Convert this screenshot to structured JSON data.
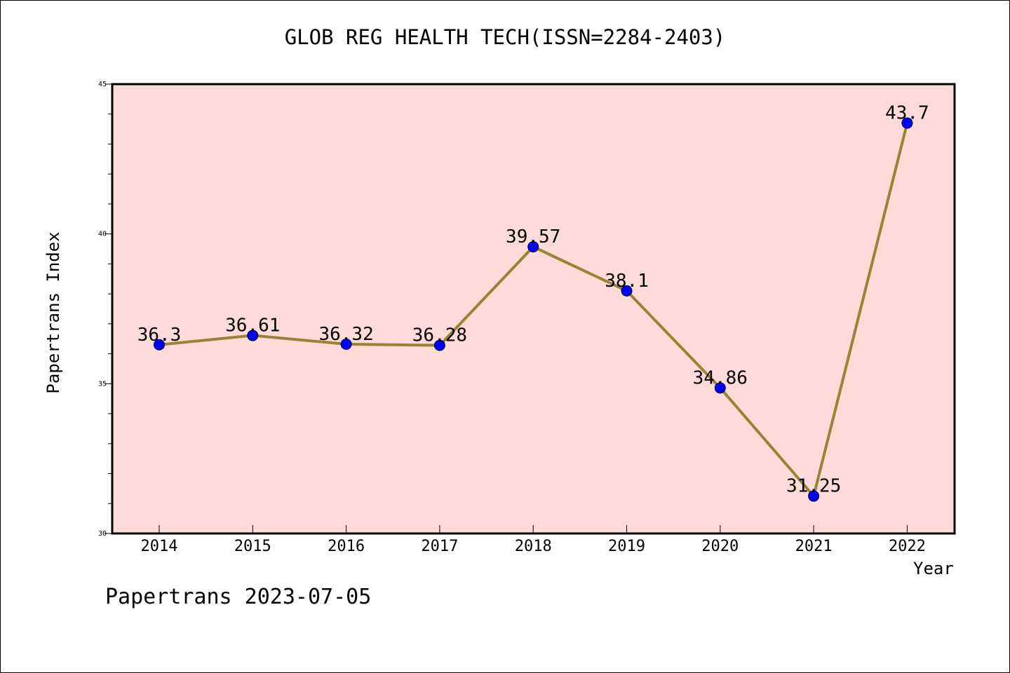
{
  "chart_data": {
    "type": "line",
    "title": "GLOB REG HEALTH TECH(ISSN=2284-2403)",
    "xlabel": "Year",
    "ylabel": "Papertrans Index",
    "categories": [
      "2014",
      "2015",
      "2016",
      "2017",
      "2018",
      "2019",
      "2020",
      "2021",
      "2022"
    ],
    "series": [
      {
        "values": [
          36.3,
          36.61,
          36.32,
          36.28,
          39.57,
          38.1,
          34.86,
          31.25,
          43.7
        ]
      }
    ],
    "data_labels": [
      "36.3",
      "36.61",
      "36.32",
      "36.28",
      "39.57",
      "38.1",
      "34.86",
      "31.25",
      "43.7"
    ],
    "ylim": [
      30,
      45
    ],
    "yticks": [
      "30",
      "35",
      "40",
      "45"
    ],
    "grid": false,
    "colors": {
      "plot_background": "#fddbd8",
      "line": "#9a8337",
      "marker": "#0000ff"
    }
  },
  "footer": "Papertrans 2023-07-05"
}
